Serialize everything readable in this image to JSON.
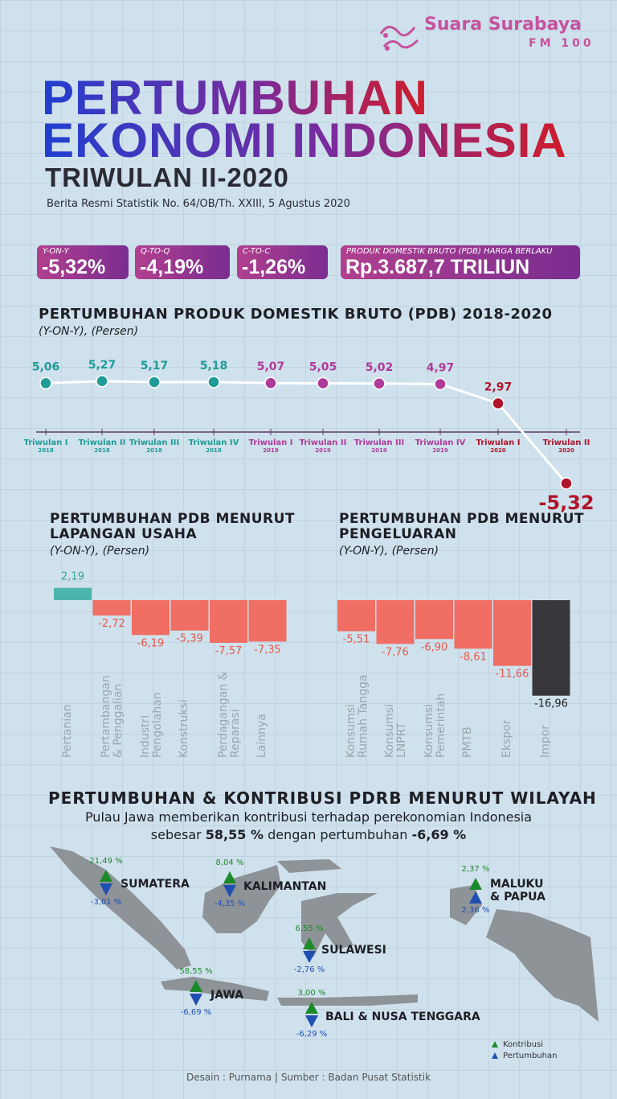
{
  "brand": {
    "name": "Suara Surabaya",
    "sub": "FM 100"
  },
  "header": {
    "title_line1": "PERTUMBUHAN",
    "title_line2": "EKONOMI INDONESIA",
    "subtitle": "TRIWULAN II-2020",
    "source": "Berita Resmi Statistik No. 64/OB/Th. XXIII, 5 Agustus 2020"
  },
  "kpis": [
    {
      "label": "Y-ON-Y",
      "value": "-5,32%"
    },
    {
      "label": "Q-TO-Q",
      "value": "-4,19%"
    },
    {
      "label": "C-TO-C",
      "value": "-1,26%"
    },
    {
      "label": "PRODUK DOMESTIK BRUTO (PDB) HARGA BERLAKU",
      "value": "Rp.3.687,7 TRILIUN"
    }
  ],
  "chart_data": [
    {
      "type": "line",
      "title": "PERTUMBUHAN PRODUK DOMESTIK BRUTO (PDB) 2018-2020",
      "subtitle": "(Y-ON-Y), (Persen)",
      "categories": [
        "Triwulan I",
        "Triwulan II",
        "Triwulan III",
        "Triwulan IV",
        "Triwulan I",
        "Triwulan II",
        "Triwulan III",
        "Triwulan IV",
        "Triwulan I",
        "Triwulan II"
      ],
      "category_years": [
        "2018",
        "2018",
        "2018",
        "2018",
        "2019",
        "2019",
        "2019",
        "2019",
        "2020",
        "2020"
      ],
      "values": [
        5.06,
        5.27,
        5.17,
        5.18,
        5.07,
        5.05,
        5.02,
        4.97,
        2.97,
        -5.32
      ],
      "value_labels": [
        "5,06",
        "5,27",
        "5,17",
        "5,18",
        "5,07",
        "5,05",
        "5,02",
        "4,97",
        "2,97",
        "-5,32"
      ],
      "colors": [
        "#1f9c98",
        "#1f9c98",
        "#1f9c98",
        "#1f9c98",
        "#b03a9a",
        "#b03a9a",
        "#b03a9a",
        "#b03a9a",
        "#b0152a",
        "#b0152a"
      ],
      "line_color": "#ffffff"
    },
    {
      "type": "bar",
      "title": "PERTUMBUHAN PDB MENURUT LAPANGAN USAHA",
      "subtitle": "(Y-ON-Y), (Persen)",
      "categories": [
        "Pertanian",
        "Pertambangan & Penggalian",
        "Industri Pengolahan",
        "Konstruksi",
        "Perdagangan & Reparasi",
        "Lainnya"
      ],
      "values": [
        2.19,
        -2.72,
        -6.19,
        -5.39,
        -7.57,
        -7.35
      ],
      "value_labels": [
        "2,19",
        "-2,72",
        "-6,19",
        "-5,39",
        "-7,57",
        "-7,35"
      ],
      "colors": [
        "#4cb5ac",
        "#f06e63",
        "#f06e63",
        "#f06e63",
        "#f06e63",
        "#f06e63"
      ]
    },
    {
      "type": "bar",
      "title": "PERTUMBUHAN PDB MENURUT PENGELUARAN",
      "subtitle": "(Y-ON-Y), (Persen)",
      "categories": [
        "Konsumsi Rumah Tangga",
        "Konsumsi LNPRT",
        "Konsumsi Pemerintah",
        "PMTB",
        "Ekspor",
        "Impor"
      ],
      "values": [
        -5.51,
        -7.76,
        -6.9,
        -8.61,
        -11.66,
        -16.96
      ],
      "value_labels": [
        "-5,51",
        "-7,76",
        "-6,90",
        "-8,61",
        "-11,66",
        "-16,96"
      ],
      "colors": [
        "#f06e63",
        "#f06e63",
        "#f06e63",
        "#f06e63",
        "#f06e63",
        "#38383c"
      ]
    }
  ],
  "regional": {
    "title": "PERTUMBUHAN & KONTRIBUSI PDRB MENURUT WILAYAH",
    "description_line1": "Pulau Jawa memberikan kontribusi terhadap perekonomian Indonesia",
    "description_line2": [
      "sebesar ",
      "58,55 %",
      " dengan pertumbuhan ",
      "-6,69 %"
    ],
    "regions": [
      {
        "name": "SUMATERA",
        "kontribusi": "21,49 %",
        "pertumbuhan": "-3,01 %"
      },
      {
        "name": "KALIMANTAN",
        "kontribusi": "8,04 %",
        "pertumbuhan": "-4,35 %"
      },
      {
        "name": "SULAWESI",
        "kontribusi": "6,55 %",
        "pertumbuhan": "-2,76 %"
      },
      {
        "name": "MALUKU & PAPUA",
        "kontribusi": "2,37 %",
        "pertumbuhan": "2,36 %"
      },
      {
        "name": "JAWA",
        "kontribusi": "58,55 %",
        "pertumbuhan": "-6,69 %"
      },
      {
        "name": "BALI & NUSA TENGGARA",
        "kontribusi": "3,00 %",
        "pertumbuhan": "-6,29 %"
      }
    ],
    "legend": [
      "Kontribusi",
      "Pertumbuhan"
    ]
  },
  "footer": "Desain : Purnama | Sumber : Badan Pusat Statistik"
}
